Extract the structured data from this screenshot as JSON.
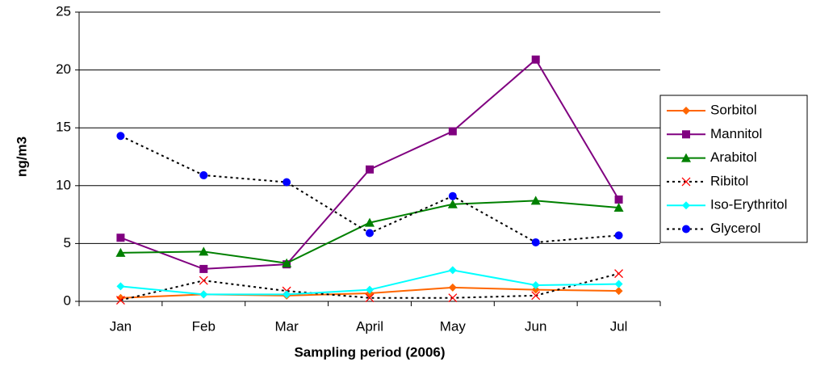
{
  "chart_data": {
    "type": "line",
    "y_label": "ng/m3",
    "x_label": "Sampling period (2006)",
    "categories": [
      "Jan",
      "Feb",
      "Mar",
      "April",
      "May",
      "Jun",
      "Jul"
    ],
    "ylim": [
      0,
      25
    ],
    "yticks": [
      0,
      5,
      10,
      15,
      20,
      25
    ],
    "grid": true,
    "legend": "right",
    "series": [
      {
        "name": "Sorbitol",
        "color": "#ff6600",
        "line_color": "#ff6600",
        "dashed": false,
        "marker": "diamond",
        "values": [
          0.3,
          0.6,
          0.5,
          0.7,
          1.2,
          1.0,
          0.9
        ]
      },
      {
        "name": "Mannitol",
        "color": "#800080",
        "line_color": "#800080",
        "dashed": false,
        "marker": "square",
        "values": [
          5.5,
          2.8,
          3.2,
          11.4,
          14.7,
          20.9,
          8.8
        ]
      },
      {
        "name": "Arabitol",
        "color": "#008000",
        "line_color": "#008000",
        "dashed": false,
        "marker": "triangle",
        "values": [
          4.2,
          4.3,
          3.3,
          6.8,
          8.4,
          8.7,
          8.1
        ]
      },
      {
        "name": "Ribitol",
        "color": "#ff0000",
        "line_color": "#000000",
        "dashed": true,
        "marker": "x",
        "values": [
          0.1,
          1.8,
          0.9,
          0.3,
          0.3,
          0.5,
          2.4
        ]
      },
      {
        "name": "Iso-Erythritol",
        "color": "#00ffff",
        "line_color": "#00ffff",
        "dashed": false,
        "marker": "diamond",
        "values": [
          1.3,
          0.6,
          0.6,
          1.0,
          2.7,
          1.4,
          1.5
        ]
      },
      {
        "name": "Glycerol",
        "color": "#0000ff",
        "line_color": "#000000",
        "dashed": true,
        "marker": "circle",
        "values": [
          14.3,
          10.9,
          10.3,
          5.9,
          9.1,
          5.1,
          5.7
        ]
      }
    ]
  }
}
